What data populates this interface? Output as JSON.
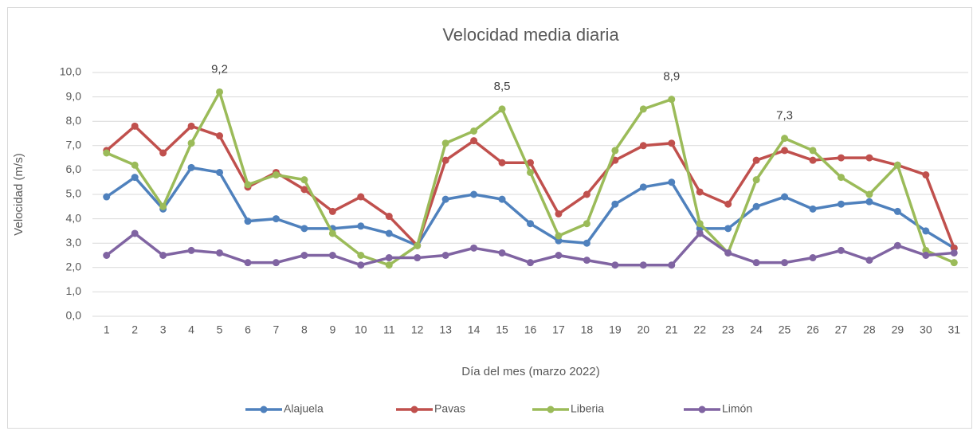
{
  "chart_data": {
    "type": "line",
    "title": "Velocidad media diaria",
    "x_label": "Día del mes (marzo 2022)",
    "y_label": "Velocidad (m/s)",
    "categories": [
      1,
      2,
      3,
      4,
      5,
      6,
      7,
      8,
      9,
      10,
      11,
      12,
      13,
      14,
      15,
      16,
      17,
      18,
      19,
      20,
      21,
      22,
      23,
      24,
      25,
      26,
      27,
      28,
      29,
      30,
      31
    ],
    "ylim": [
      0,
      10
    ],
    "yticks": [
      {
        "value": 0,
        "label": "0,0"
      },
      {
        "value": 1,
        "label": "1,0"
      },
      {
        "value": 2,
        "label": "2,0"
      },
      {
        "value": 3,
        "label": "3,0"
      },
      {
        "value": 4,
        "label": "4,0"
      },
      {
        "value": 5,
        "label": "5,0"
      },
      {
        "value": 6,
        "label": "6,0"
      },
      {
        "value": 7,
        "label": "7,0"
      },
      {
        "value": 8,
        "label": "8,0"
      },
      {
        "value": 9,
        "label": "9,0"
      },
      {
        "value": 10,
        "label": "10,0"
      }
    ],
    "grid": true,
    "legend": "bottom",
    "series": [
      {
        "name": "Alajuela",
        "color": "#4f81bd",
        "values": [
          4.9,
          5.7,
          4.4,
          6.1,
          5.9,
          3.9,
          4.0,
          3.6,
          3.6,
          3.7,
          3.4,
          2.9,
          4.8,
          5.0,
          4.8,
          3.8,
          3.1,
          3.0,
          4.6,
          5.3,
          5.5,
          3.6,
          3.6,
          4.5,
          4.9,
          4.4,
          4.6,
          4.7,
          4.3,
          3.5,
          2.8
        ]
      },
      {
        "name": "Pavas",
        "color": "#c0504d",
        "values": [
          6.8,
          7.8,
          6.7,
          7.8,
          7.4,
          5.3,
          5.9,
          5.2,
          4.3,
          4.9,
          4.1,
          2.9,
          6.4,
          7.2,
          6.3,
          6.3,
          4.2,
          5.0,
          6.4,
          7.0,
          7.1,
          5.1,
          4.6,
          6.4,
          6.8,
          6.4,
          6.5,
          6.5,
          6.2,
          5.8,
          2.8
        ]
      },
      {
        "name": "Liberia",
        "color": "#9bbb59",
        "values": [
          6.7,
          6.2,
          4.5,
          7.1,
          9.2,
          5.4,
          5.8,
          5.6,
          3.4,
          2.5,
          2.1,
          2.9,
          7.1,
          7.6,
          8.5,
          5.9,
          3.3,
          3.8,
          6.8,
          8.5,
          8.9,
          3.8,
          2.6,
          5.6,
          7.3,
          6.8,
          5.7,
          5.0,
          6.2,
          2.7,
          2.2
        ],
        "value_labels": [
          null,
          null,
          null,
          null,
          "9,2",
          null,
          null,
          null,
          null,
          null,
          null,
          null,
          null,
          null,
          "8,5",
          null,
          null,
          null,
          null,
          null,
          "8,9",
          null,
          null,
          null,
          "7,3",
          null,
          null,
          null,
          null,
          null,
          null
        ]
      },
      {
        "name": "Limón",
        "color": "#8064a2",
        "values": [
          2.5,
          3.4,
          2.5,
          2.7,
          2.6,
          2.2,
          2.2,
          2.5,
          2.5,
          2.1,
          2.4,
          2.4,
          2.5,
          2.8,
          2.6,
          2.2,
          2.5,
          2.3,
          2.1,
          2.1,
          2.1,
          3.4,
          2.6,
          2.2,
          2.2,
          2.4,
          2.7,
          2.3,
          2.9,
          2.5,
          2.6
        ]
      }
    ]
  }
}
